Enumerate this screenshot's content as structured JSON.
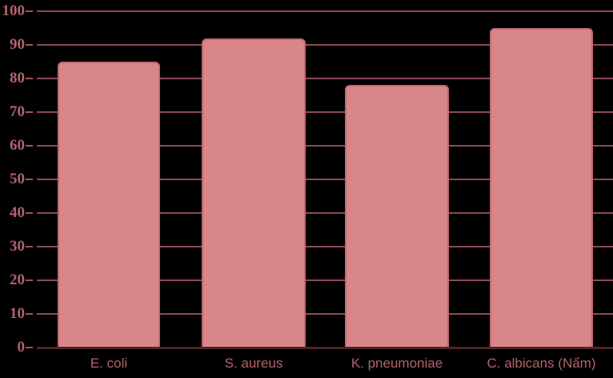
{
  "chart_data": {
    "type": "bar",
    "title": "",
    "xlabel": "",
    "ylabel": "",
    "categories": [
      "E. coli",
      "S. aureus",
      "K. pneumoniae",
      "C. albicans (Nấm)"
    ],
    "values": [
      85,
      92,
      78,
      95
    ],
    "yticks": [
      0,
      10,
      20,
      30,
      40,
      50,
      60,
      70,
      80,
      90,
      100
    ],
    "ylim": [
      0,
      100
    ],
    "grid": "horizontal",
    "legend": "none",
    "colors": {
      "background": "#000000",
      "bar_fill": "#d9868b",
      "bar_border": "#c06972",
      "gridline": "#8e4a55",
      "tick": "#9d5560",
      "axis_line": "#4f2329",
      "text": "#b2636c"
    }
  }
}
